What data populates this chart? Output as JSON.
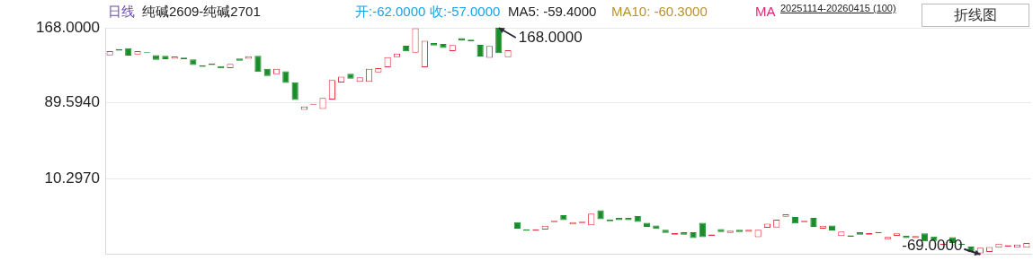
{
  "chart_data": {
    "type": "candlestick",
    "title": "日线",
    "subtitle": "纯碱2609-纯碱2701",
    "annotations": [
      "开:-62.0000",
      "收:-57.0000",
      "MA5: -59.4000",
      "MA10: -60.3000",
      "MA",
      "20251114-20260415 (100)",
      "折线图",
      "168.0000",
      "-69.0000"
    ],
    "categories": [
      null,
      null,
      null,
      null,
      null,
      null,
      null,
      null,
      null,
      null,
      null,
      null,
      null,
      null,
      null,
      null,
      null,
      null,
      null,
      null,
      null,
      null,
      null,
      null,
      null,
      null,
      null,
      null,
      null,
      null,
      null,
      null,
      null,
      null,
      null,
      null,
      null,
      null,
      null,
      null,
      null,
      null,
      null,
      null,
      null,
      null,
      null,
      null,
      null,
      null,
      null,
      null,
      null,
      null,
      null,
      null,
      null,
      null,
      null,
      null,
      null,
      null,
      null,
      null,
      null,
      null,
      null,
      null,
      null,
      null,
      null,
      null,
      null,
      null,
      null,
      null,
      null,
      null,
      null,
      null,
      null,
      null,
      null,
      null,
      null,
      null,
      null,
      null,
      null,
      null,
      null,
      null,
      null,
      null,
      null,
      null,
      null,
      null,
      null,
      null
    ],
    "ohlc": [
      [
        139.2,
        143.7,
        139.2,
        143.7
      ],
      [
        145.7,
        145.7,
        144.2,
        144.2
      ],
      [
        146.6,
        146.6,
        138.9,
        138.9
      ],
      [
        140.1,
        143.7,
        140.1,
        143.7
      ],
      [
        142.4,
        142.4,
        141.5,
        141.5
      ],
      [
        139.5,
        139.5,
        134.4,
        134.4
      ],
      [
        138.6,
        138.6,
        135.3,
        135.3
      ],
      [
        135.7,
        138.0,
        135.7,
        138.0
      ],
      [
        136.8,
        136.8,
        135.3,
        135.3
      ],
      [
        135.0,
        135.0,
        129.1,
        129.1
      ],
      [
        128.8,
        128.8,
        127.3,
        127.3
      ],
      [
        130.6,
        130.6,
        129.1,
        129.1
      ],
      [
        127.9,
        127.9,
        125.5,
        125.5
      ],
      [
        125.9,
        130.3,
        125.9,
        130.3
      ],
      [
        135.9,
        135.9,
        133.5,
        133.5
      ],
      [
        135.7,
        138.3,
        135.7,
        138.3
      ],
      [
        138.6,
        138.6,
        121.9,
        121.9
      ],
      [
        125.2,
        125.2,
        117.5,
        117.5
      ],
      [
        119.6,
        125.0,
        119.6,
        125.0
      ],
      [
        122.6,
        122.6,
        110.4,
        110.4
      ],
      [
        111.0,
        111.0,
        92.5,
        92.5
      ],
      [
        82.2,
        85.8,
        82.2,
        85.8
      ],
      [
        87.6,
        88.6,
        87.6,
        88.6
      ],
      [
        83.1,
        94.7,
        83.1,
        94.7
      ],
      [
        92.9,
        113.4,
        92.9,
        113.4
      ],
      [
        110.7,
        116.9,
        110.7,
        116.9
      ],
      [
        119.9,
        119.9,
        114.8,
        114.8
      ],
      [
        111.6,
        116.1,
        111.6,
        116.1
      ],
      [
        111.6,
        125.0,
        111.6,
        125.0
      ],
      [
        121.4,
        125.9,
        121.4,
        125.9
      ],
      [
        126.8,
        137.4,
        126.8,
        137.4
      ],
      [
        137.4,
        141.0,
        137.4,
        141.0
      ],
      [
        149.3,
        149.3,
        143.3,
        143.3
      ],
      [
        141.9,
        167.5,
        141.9,
        167.5
      ],
      [
        126.8,
        154.4,
        126.8,
        154.4
      ],
      [
        152.0,
        152.0,
        149.6,
        149.6
      ],
      [
        151.1,
        151.1,
        146.9,
        146.9
      ],
      [
        143.7,
        149.9,
        143.7,
        149.9
      ],
      [
        157.3,
        157.3,
        154.9,
        154.9
      ],
      [
        155.5,
        155.5,
        154.0,
        154.0
      ],
      [
        150.2,
        150.2,
        138.0,
        138.0
      ],
      [
        136.5,
        149.0,
        136.5,
        149.0
      ],
      [
        168,
        168,
        141.5,
        141.5
      ],
      [
        137.4,
        144.6,
        137.4,
        144.6
      ],
      [
        -35.1,
        -35.1,
        -42.0,
        -42.0
      ],
      [
        -42.8,
        -42.8,
        -44.2,
        -44.2
      ],
      [
        -44.2,
        -42.8,
        -44.2,
        -42.8
      ],
      [
        -42.9,
        -39.0,
        -42.9,
        -39.0
      ],
      [
        -35.2,
        -33.8,
        -35.2,
        -33.8
      ],
      [
        -28.0,
        -28.0,
        -33.1,
        -33.1
      ],
      [
        -37.6,
        -35.1,
        -37.6,
        -35.1
      ],
      [
        -36.1,
        -34.7,
        -36.1,
        -34.7
      ],
      [
        -38.4,
        -26.2,
        -38.4,
        -26.2
      ],
      [
        -22.7,
        -22.7,
        -32.2,
        -32.2
      ],
      [
        -32.5,
        -32.5,
        -34.3,
        -34.3
      ],
      [
        -30.7,
        -30.7,
        -33.1,
        -33.1
      ],
      [
        -30.7,
        -30.7,
        -33.1,
        -33.1
      ],
      [
        -28.9,
        -28.9,
        -34.9,
        -34.9
      ],
      [
        -36.0,
        -36.0,
        -40.2,
        -40.2
      ],
      [
        -38.7,
        -38.7,
        -42.3,
        -42.3
      ],
      [
        -43.2,
        -43.2,
        -46.5,
        -46.5
      ],
      [
        -48.3,
        -46.7,
        -48.3,
        -46.7
      ],
      [
        -45.8,
        -45.8,
        -48.3,
        -48.3
      ],
      [
        -45.8,
        -45.8,
        -51.8,
        -51.8
      ],
      [
        -36.0,
        -36.0,
        -50.9,
        -50.9
      ],
      [
        -49.5,
        -48.1,
        -49.5,
        -48.1
      ],
      [
        -42.5,
        -42.5,
        -45.6,
        -45.6
      ],
      [
        -46.5,
        -44.1,
        -46.5,
        -44.1
      ],
      [
        -43.2,
        -43.2,
        -45.6,
        -45.6
      ],
      [
        -45.2,
        -43.2,
        -45.2,
        -43.2
      ],
      [
        -50.9,
        -43.2,
        -50.9,
        -43.2
      ],
      [
        -41.1,
        -36.9,
        -41.1,
        -36.9
      ],
      [
        -40.8,
        -32.7,
        -40.8,
        -32.7
      ],
      [
        -29.5,
        -27.1,
        -29.5,
        -27.1
      ],
      [
        -29.8,
        -29.8,
        -36.7,
        -36.7
      ],
      [
        -35.2,
        -33.8,
        -35.2,
        -33.8
      ],
      [
        -30.7,
        -30.7,
        -40.2,
        -40.2
      ],
      [
        -42.0,
        -39.0,
        -42.0,
        -39.0
      ],
      [
        -38.7,
        -38.7,
        -43.8,
        -43.8
      ],
      [
        -49.7,
        -45.0,
        -49.7,
        -45.0
      ],
      [
        -49.0,
        -49.0,
        -50.4,
        -50.4
      ],
      [
        -45.8,
        -45.8,
        -48.3,
        -48.3
      ],
      [
        -48.3,
        -46.7,
        -48.3,
        -46.7
      ],
      [
        -46.8,
        -45.4,
        -46.8,
        -45.4
      ],
      [
        -53.0,
        -50.6,
        -53.0,
        -50.6
      ],
      [
        -49.4,
        -47.0,
        -49.4,
        -47.0
      ],
      [
        -49.4,
        -49.4,
        -51.8,
        -51.8
      ],
      [
        -51.8,
        -49.7,
        -51.8,
        -49.7
      ],
      [
        -47.0,
        -47.0,
        -55.4,
        -55.4
      ],
      [
        -50.3,
        -50.3,
        -54.8,
        -54.8
      ],
      [
        -59.0,
        -57.6,
        -59.0,
        -57.6
      ],
      [
        -50.9,
        -50.9,
        -56.9,
        -56.9
      ],
      [
        -57.6,
        -57.6,
        -59.0,
        -59.0
      ],
      [
        -60.8,
        -60.8,
        -66.7,
        -66.7
      ],
      [
        -67.8,
        -61.9,
        -69,
        -61.9
      ],
      [
        -66.3,
        -61.3,
        -66.3,
        -61.3
      ],
      [
        -61.9,
        -57.7,
        -61.9,
        -57.7
      ],
      [
        -60.8,
        -59.4,
        -60.8,
        -59.4
      ],
      [
        -61.9,
        -58.6,
        -61.9,
        -58.6
      ],
      [
        -62,
        -57,
        -62,
        -57
      ]
    ],
    "colors": [
      "#e0323c",
      "#1a8c2a",
      "#1a8c2a",
      "#e0323c",
      "#1a8c2a",
      "#1a8c2a",
      "#1a8c2a",
      "#e0323c",
      "#1a8c2a",
      "#1a8c2a",
      "#1a8c2a",
      "#1a8c2a",
      "#1a8c2a",
      "#e0323c",
      "#1a8c2a",
      "#e0323c",
      "#1a8c2a",
      "#1a8c2a",
      "#e0323c",
      "#1a8c2a",
      "#1a8c2a",
      "#e0323c",
      "#e0323c",
      "#e0323c",
      "#e0323c",
      "#e0323c",
      "#1a8c2a",
      "#e0323c",
      "#e0323c",
      "#e0323c",
      "#e0323c",
      "#e0323c",
      "#1a8c2a",
      "#e0323c",
      "#e0323c",
      "#1a8c2a",
      "#1a8c2a",
      "#e0323c",
      "#1a8c2a",
      "#1a8c2a",
      "#1a8c2a",
      "#e0323c",
      "#1a8c2a",
      "#e0323c",
      "#1a8c2a",
      "#1a8c2a",
      "#e0323c",
      "#e0323c",
      "#e0323c",
      "#1a8c2a",
      "#e0323c",
      "#e0323c",
      "#e0323c",
      "#1a8c2a",
      "#1a8c2a",
      "#1a8c2a",
      "#1a8c2a",
      "#1a8c2a",
      "#1a8c2a",
      "#1a8c2a",
      "#1a8c2a",
      "#e0323c",
      "#1a8c2a",
      "#1a8c2a",
      "#1a8c2a",
      "#e0323c",
      "#1a8c2a",
      "#e0323c",
      "#1a8c2a",
      "#e0323c",
      "#e0323c",
      "#e0323c",
      "#e0323c",
      "#e0323c",
      "#1a8c2a",
      "#e0323c",
      "#1a8c2a",
      "#e0323c",
      "#1a8c2a",
      "#e0323c",
      "#1a8c2a",
      "#1a8c2a",
      "#e0323c",
      "#e0323c",
      "#e0323c",
      "#e0323c",
      "#1a8c2a",
      "#e0323c",
      "#1a8c2a",
      "#1a8c2a",
      "#e0323c",
      "#1a8c2a",
      "#1a8c2a",
      "#1a8c2a",
      "#e0323c",
      "#e0323c",
      "#e0323c",
      "#e0323c",
      "#e0323c",
      "#e0323c"
    ],
    "ylim": [
      -69,
      168
    ],
    "yticks": [
      {
        "value": 168,
        "label": "168.0000"
      },
      {
        "value": 89.594,
        "label": "89.5940"
      },
      {
        "value": 10.297,
        "label": "10.2970"
      }
    ],
    "grid": "y",
    "tick_labels": "y",
    "legend": false
  }
}
